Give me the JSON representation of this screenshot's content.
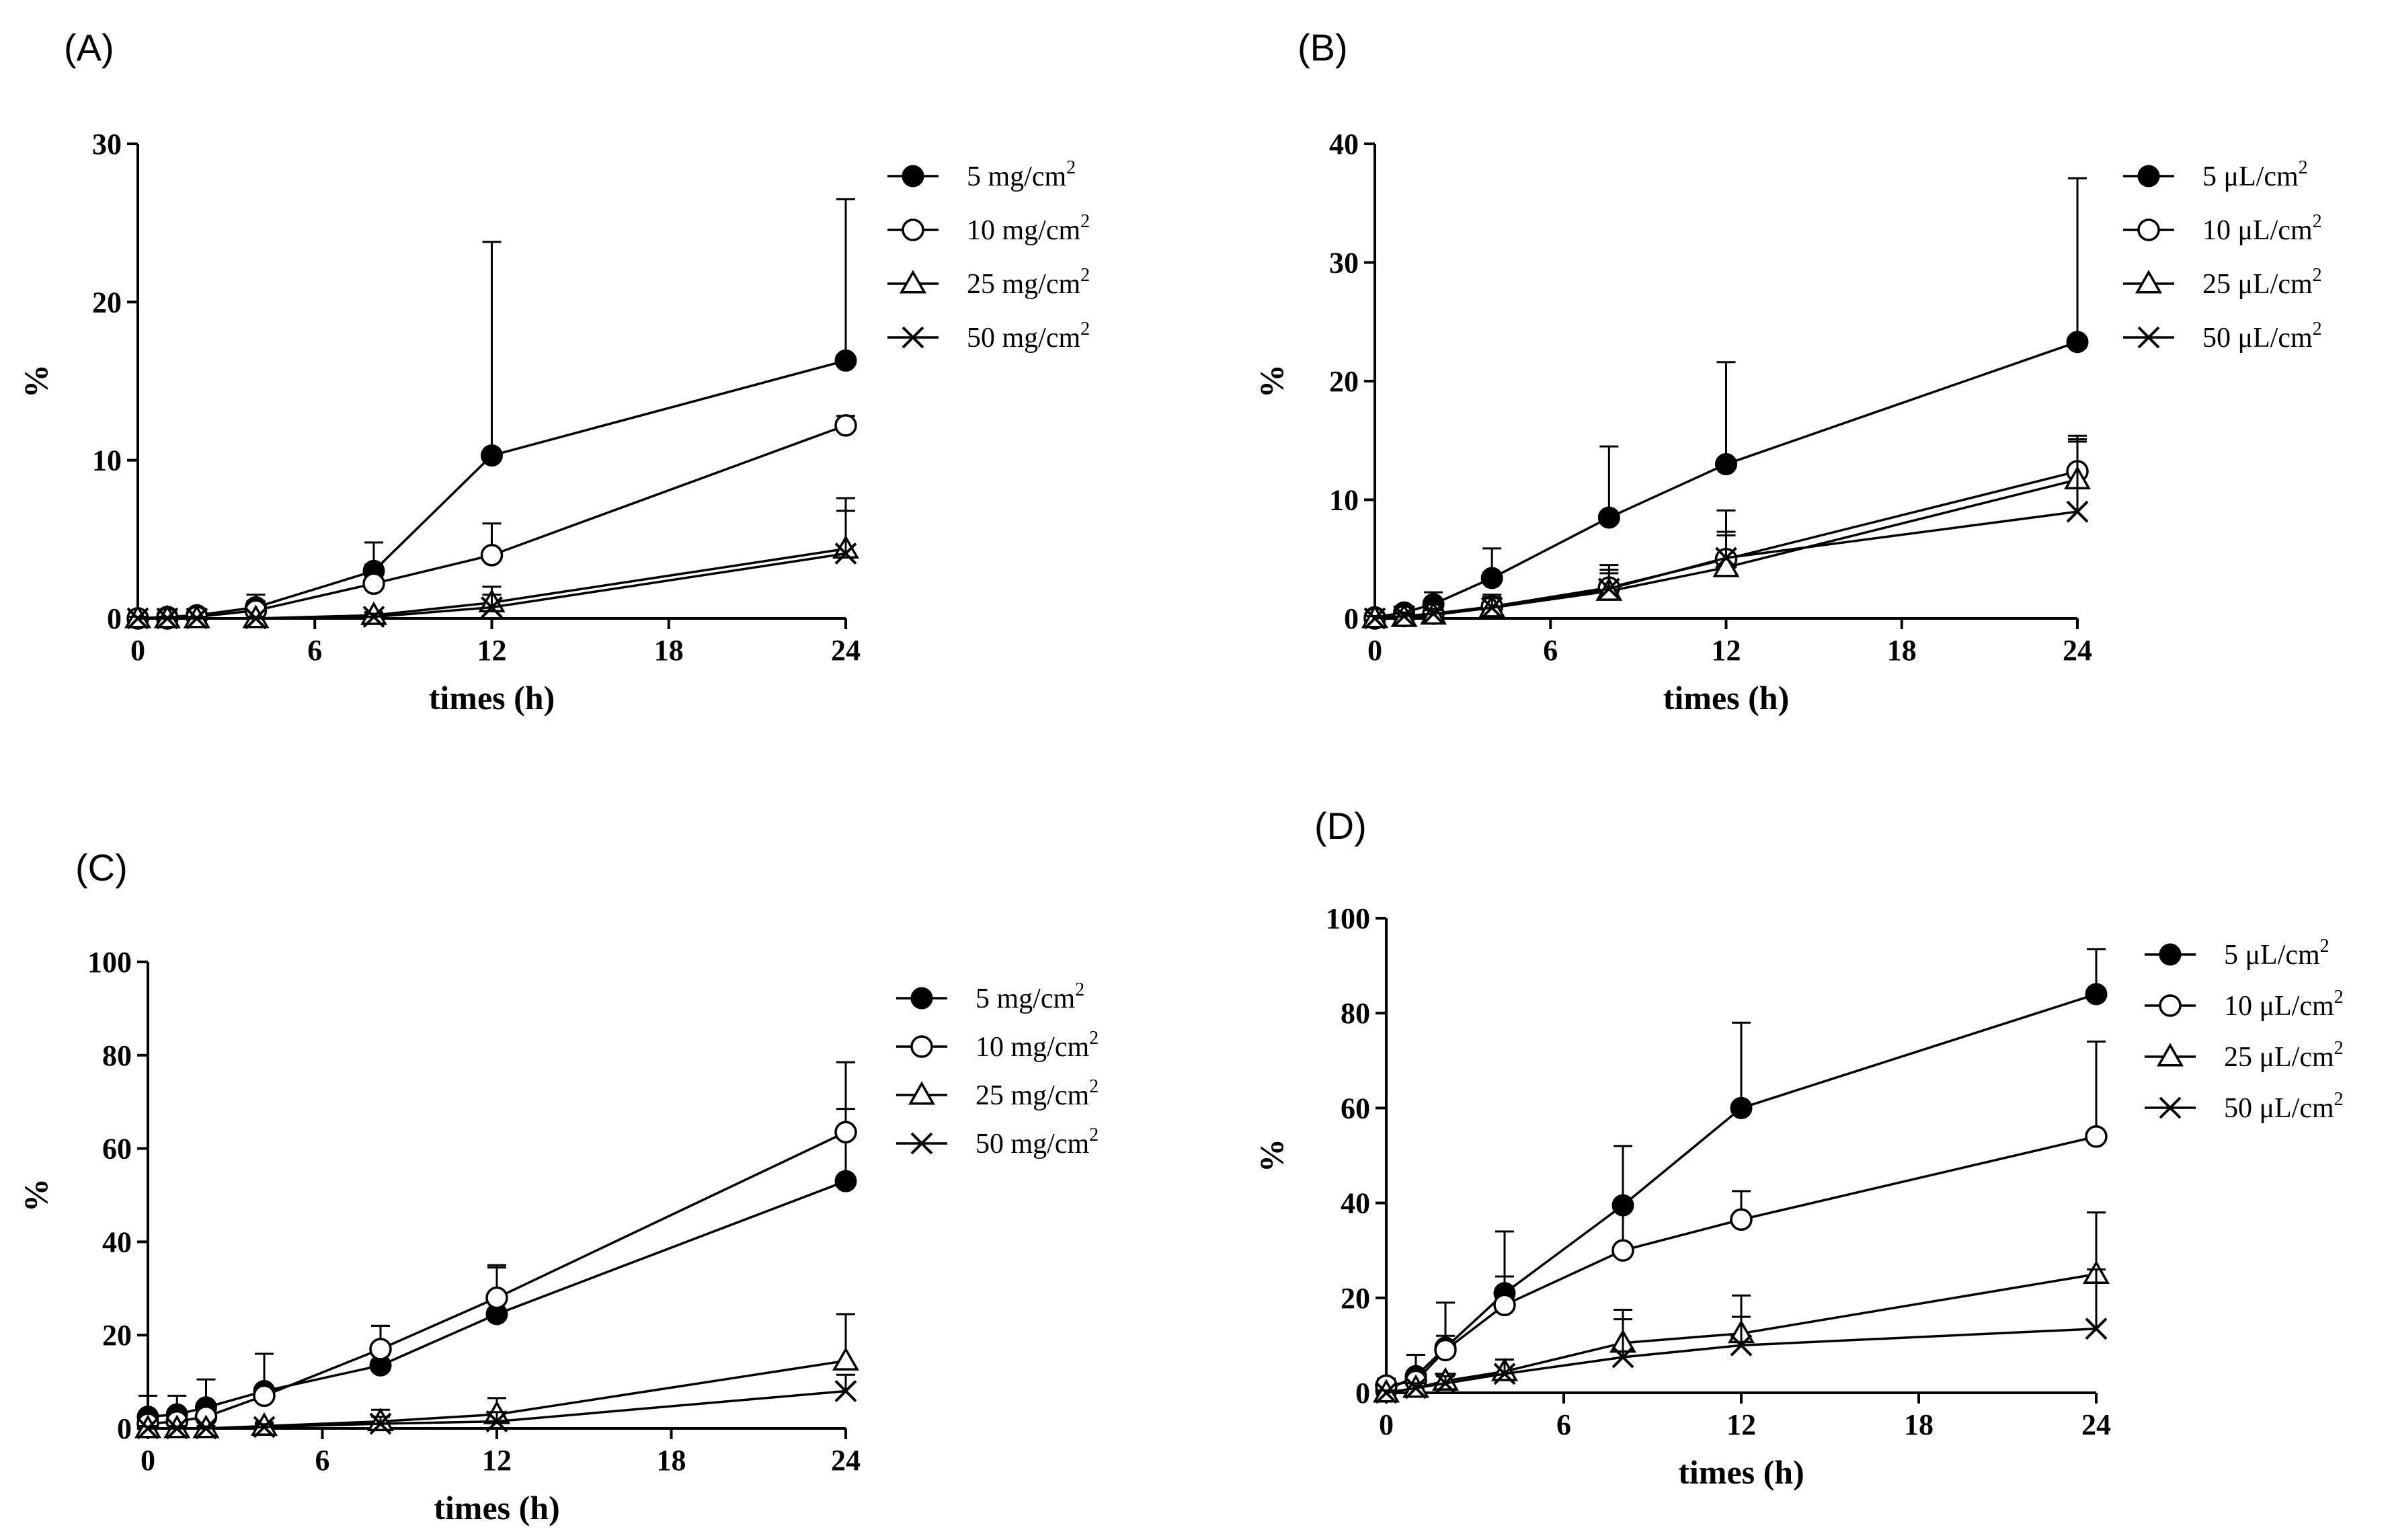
{
  "figure": {
    "x_axis_title": "times (h)",
    "y_axis_title": "%"
  },
  "chart_data": [
    {
      "type": "line",
      "label": "(A)",
      "xlabel": "times (h)",
      "ylabel": "%",
      "xlim": [
        0,
        24
      ],
      "ylim": [
        0,
        30
      ],
      "xticks": [
        0,
        6,
        12,
        18,
        24
      ],
      "yticks": [
        0,
        10,
        20,
        30
      ],
      "x": [
        0,
        1,
        2,
        4,
        8,
        12,
        24
      ],
      "series": [
        {
          "name": "5 mg/cm",
          "sup": "2",
          "marker": "filled-circle",
          "values": [
            0,
            0.1,
            0.2,
            0.7,
            3.0,
            10.3,
            16.3
          ],
          "error": [
            0.4,
            0.4,
            0.4,
            0.8,
            1.8,
            13.5,
            10.2
          ]
        },
        {
          "name": "10 mg/cm",
          "sup": "2",
          "marker": "open-circle",
          "values": [
            0,
            0,
            0.1,
            0.5,
            2.2,
            4.0,
            12.2
          ],
          "error": [
            0.3,
            0.3,
            0.3,
            0.6,
            1.2,
            2.0,
            0.6
          ]
        },
        {
          "name": "25 mg/cm",
          "sup": "2",
          "marker": "triangle",
          "values": [
            0,
            0,
            0,
            0,
            0.2,
            1.0,
            4.4
          ],
          "error": [
            0.1,
            0.1,
            0.1,
            0.1,
            0.2,
            1.0,
            3.2
          ]
        },
        {
          "name": "50 mg/cm",
          "sup": "2",
          "marker": "cross",
          "values": [
            0,
            0,
            0,
            0,
            0.1,
            0.7,
            4.1
          ],
          "error": [
            0.1,
            0.1,
            0.1,
            0.1,
            0.2,
            0.8,
            2.7
          ]
        }
      ]
    },
    {
      "type": "line",
      "label": "(B)",
      "xlabel": "times (h)",
      "ylabel": "%",
      "xlim": [
        0,
        24
      ],
      "ylim": [
        0,
        40
      ],
      "xticks": [
        0,
        6,
        12,
        18,
        24
      ],
      "yticks": [
        0,
        10,
        20,
        30,
        40
      ],
      "x": [
        0,
        1,
        2,
        4,
        8,
        12,
        24
      ],
      "series": [
        {
          "name": "5 μL/cm",
          "sup": "2",
          "marker": "filled-circle",
          "values": [
            0.1,
            0.5,
            1.2,
            3.4,
            8.5,
            13.0,
            23.3
          ],
          "error": [
            0.4,
            0.5,
            1.0,
            2.5,
            6.0,
            8.6,
            13.8
          ]
        },
        {
          "name": "10 μL/cm",
          "sup": "2",
          "marker": "open-circle",
          "values": [
            0,
            0.2,
            0.4,
            1.0,
            2.6,
            5.0,
            12.4
          ],
          "error": [
            0.3,
            0.4,
            0.5,
            1.0,
            1.5,
            2.0,
            2.5
          ]
        },
        {
          "name": "25 μL/cm",
          "sup": "2",
          "marker": "triangle",
          "values": [
            0,
            0.1,
            0.3,
            0.9,
            2.3,
            4.3,
            11.7
          ],
          "error": [
            0.2,
            0.3,
            0.4,
            0.8,
            1.5,
            3.0,
            3.4
          ]
        },
        {
          "name": "50 μL/cm",
          "sup": "2",
          "marker": "cross",
          "values": [
            0,
            0.2,
            0.4,
            0.9,
            2.5,
            5.1,
            9.0
          ],
          "error": [
            0.2,
            0.3,
            0.4,
            0.9,
            2.0,
            4.0,
            6.4
          ]
        }
      ]
    },
    {
      "type": "line",
      "label": "(C)",
      "xlabel": "times (h)",
      "ylabel": "%",
      "xlim": [
        0,
        24
      ],
      "ylim": [
        0,
        100
      ],
      "xticks": [
        0,
        6,
        12,
        18,
        24
      ],
      "yticks": [
        0,
        20,
        40,
        60,
        80,
        100
      ],
      "x": [
        0,
        1,
        2,
        4,
        8,
        12,
        24
      ],
      "series": [
        {
          "name": "5 mg/cm",
          "sup": "2",
          "marker": "filled-circle",
          "values": [
            2.5,
            3.0,
            4.5,
            8.0,
            13.5,
            24.5,
            53.0
          ],
          "error": [
            4.5,
            4.0,
            6.0,
            8.0,
            8.5,
            10.0,
            15.5
          ]
        },
        {
          "name": "10 mg/cm",
          "sup": "2",
          "marker": "open-circle",
          "values": [
            1.0,
            1.5,
            2.5,
            7.0,
            17.0,
            28.0,
            63.5
          ],
          "error": [
            2.0,
            2.0,
            2.5,
            2.0,
            5.0,
            7.0,
            15.0
          ]
        },
        {
          "name": "25 mg/cm",
          "sup": "2",
          "marker": "triangle",
          "values": [
            0,
            0,
            0,
            0.5,
            1.5,
            3.0,
            14.5
          ],
          "error": [
            0.5,
            0.5,
            0.5,
            0.8,
            2.5,
            3.5,
            10.0
          ]
        },
        {
          "name": "50 mg/cm",
          "sup": "2",
          "marker": "cross",
          "values": [
            0,
            0,
            0,
            0.3,
            1.0,
            1.5,
            8.0
          ],
          "error": [
            0.4,
            0.4,
            0.4,
            0.6,
            1.5,
            2.0,
            3.5
          ]
        }
      ]
    },
    {
      "type": "line",
      "label": "(D)",
      "xlabel": "times (h)",
      "ylabel": "%",
      "xlim": [
        0,
        24
      ],
      "ylim": [
        0,
        100
      ],
      "xticks": [
        0,
        6,
        12,
        18,
        24
      ],
      "yticks": [
        0,
        20,
        40,
        60,
        80,
        100
      ],
      "x": [
        0,
        1,
        2,
        4,
        8,
        12,
        24
      ],
      "series": [
        {
          "name": "5 μL/cm",
          "sup": "2",
          "marker": "filled-circle",
          "values": [
            0.5,
            3.5,
            9.5,
            21.0,
            39.5,
            60.0,
            84.0
          ],
          "error": [
            2.0,
            4.5,
            9.5,
            13.0,
            12.5,
            18.0,
            9.5
          ]
        },
        {
          "name": "10 μL/cm",
          "sup": "2",
          "marker": "open-circle",
          "values": [
            1.5,
            2.5,
            9.0,
            18.5,
            30.0,
            36.5,
            54.0
          ],
          "error": [
            1.5,
            2.0,
            3.0,
            6.0,
            9.0,
            6.0,
            20.0
          ]
        },
        {
          "name": "25 μL/cm",
          "sup": "2",
          "marker": "triangle",
          "values": [
            0,
            1.0,
            2.5,
            4.5,
            10.5,
            12.5,
            25.0
          ],
          "error": [
            0.5,
            1.0,
            1.5,
            2.5,
            7.0,
            8.0,
            13.0
          ]
        },
        {
          "name": "50 μL/cm",
          "sup": "2",
          "marker": "cross",
          "values": [
            0,
            1.0,
            2.0,
            4.0,
            7.5,
            10.0,
            13.5
          ],
          "error": [
            0.5,
            1.0,
            1.5,
            3.0,
            8.0,
            6.0,
            12.5
          ]
        }
      ]
    }
  ]
}
